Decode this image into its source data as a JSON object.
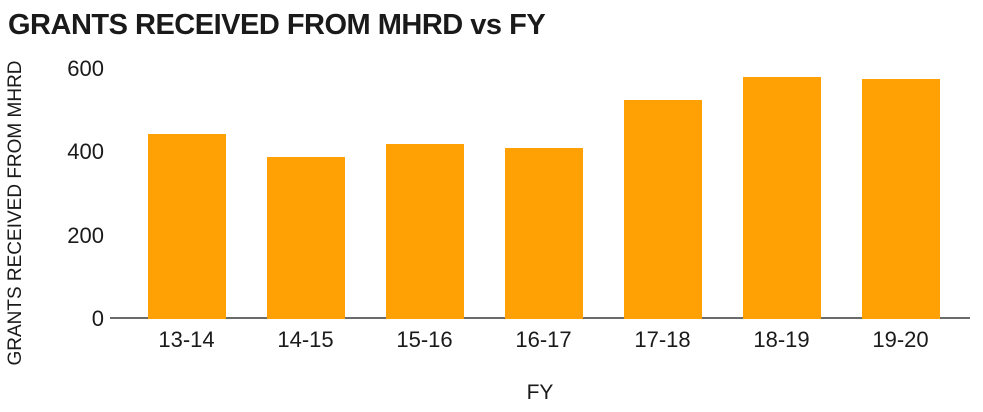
{
  "chart_data": {
    "type": "bar",
    "title": "GRANTS RECEIVED FROM MHRD vs FY",
    "xlabel": "FY",
    "ylabel": "GRANTS RECEIVED FROM MHRD",
    "categories": [
      "13-14",
      "14-15",
      "15-16",
      "16-17",
      "17-18",
      "18-19",
      "19-20"
    ],
    "values": [
      445,
      390,
      420,
      410,
      525,
      580,
      577
    ],
    "ylim": [
      0,
      600
    ],
    "yticks": [
      0,
      200,
      400,
      600
    ],
    "grid": false,
    "legend": "none",
    "colors": {
      "bar": "#FFA005",
      "axis_line": "#6B6B6B",
      "text": "#1A1A1A",
      "background": "#FFFFFF"
    }
  }
}
